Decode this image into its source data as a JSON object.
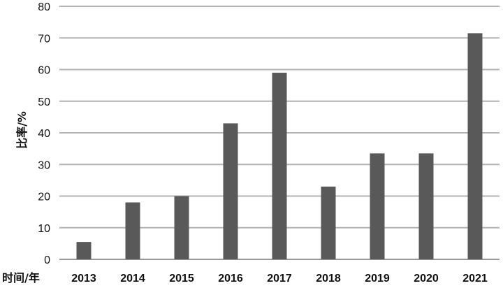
{
  "chart_data": {
    "type": "bar",
    "title": "",
    "xlabel": "时间/年",
    "ylabel": "比率/%",
    "categories": [
      "2013",
      "2014",
      "2015",
      "2016",
      "2017",
      "2018",
      "2019",
      "2020",
      "2021"
    ],
    "values": [
      5.5,
      18,
      20,
      43,
      59,
      23,
      33.5,
      33.5,
      71.5
    ],
    "ylim": [
      0,
      80
    ],
    "yticks": [
      "0",
      "10",
      "20",
      "30",
      "40",
      "50",
      "60",
      "70",
      "80"
    ],
    "grid": true,
    "legend": "none",
    "bar_color": "#595959",
    "grid_color": "#b3b3b3"
  }
}
